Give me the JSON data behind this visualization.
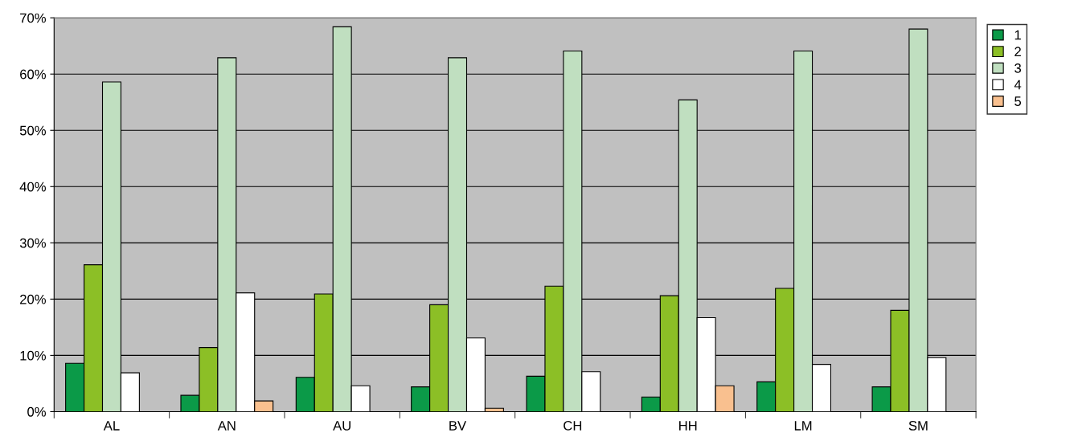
{
  "chart_data": {
    "type": "bar",
    "categories": [
      "AL",
      "AN",
      "AU",
      "BV",
      "CH",
      "HH",
      "LM",
      "SM"
    ],
    "series": [
      {
        "name": "1",
        "color": "#0b9a48",
        "values": [
          8.6,
          2.9,
          6.1,
          4.4,
          6.3,
          2.6,
          5.3,
          4.4
        ]
      },
      {
        "name": "2",
        "color": "#8cbf26",
        "values": [
          26.1,
          11.4,
          20.9,
          19.0,
          22.3,
          20.6,
          21.9,
          18.0
        ]
      },
      {
        "name": "3",
        "color": "#c0dfc0",
        "values": [
          58.6,
          62.9,
          68.4,
          62.9,
          64.1,
          55.4,
          64.1,
          68.0
        ]
      },
      {
        "name": "4",
        "color": "#ffffff",
        "values": [
          6.9,
          21.1,
          4.6,
          13.1,
          7.1,
          16.7,
          8.4,
          9.6
        ]
      },
      {
        "name": "5",
        "color": "#f9c08f",
        "values": [
          null,
          1.9,
          null,
          0.6,
          null,
          4.6,
          null,
          null
        ]
      }
    ],
    "ylim": [
      0,
      70
    ],
    "yticks": [
      {
        "value": 0,
        "label": "0%"
      },
      {
        "value": 10,
        "label": "10%"
      },
      {
        "value": 20,
        "label": "20%"
      },
      {
        "value": 30,
        "label": "30%"
      },
      {
        "value": 40,
        "label": "40%"
      },
      {
        "value": 50,
        "label": "50%"
      },
      {
        "value": 60,
        "label": "60%"
      },
      {
        "value": 70,
        "label": "70%"
      }
    ],
    "grid": "y",
    "legend": "top right"
  }
}
